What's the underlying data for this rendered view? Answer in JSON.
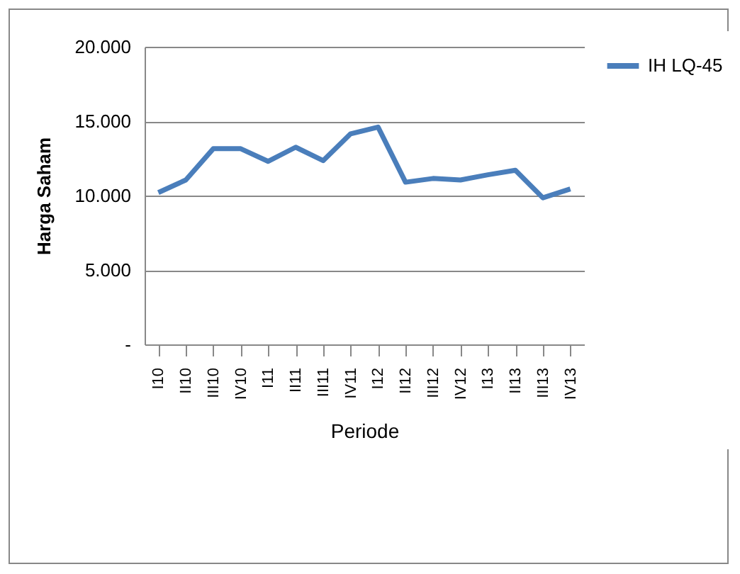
{
  "chart_data": {
    "type": "line",
    "xlabel": "Periode",
    "ylabel": "Harga Saham",
    "categories": [
      "I10",
      "II10",
      "III10",
      "IV10",
      "I11",
      "II11",
      "III11",
      "IV11",
      "I12",
      "II12",
      "III12",
      "IV12",
      "I13",
      "II13",
      "III13",
      "IV13"
    ],
    "series": [
      {
        "name": "IH LQ-45",
        "color": "#4a7ebb",
        "values": [
          10200,
          11050,
          13150,
          13150,
          12300,
          13250,
          12350,
          14150,
          14600,
          10900,
          11150,
          11050,
          11400,
          11700,
          9850,
          10450
        ]
      }
    ],
    "ylim": [
      0,
      20000
    ],
    "yticks": [
      {
        "value": 0,
        "label": "-"
      },
      {
        "value": 5000,
        "label": "5.000"
      },
      {
        "value": 10000,
        "label": "10.000"
      },
      {
        "value": 15000,
        "label": "15.000"
      },
      {
        "value": 20000,
        "label": "20.000"
      }
    ],
    "grid": "y",
    "legend": "right",
    "marker": "none",
    "line_style": "solid"
  }
}
